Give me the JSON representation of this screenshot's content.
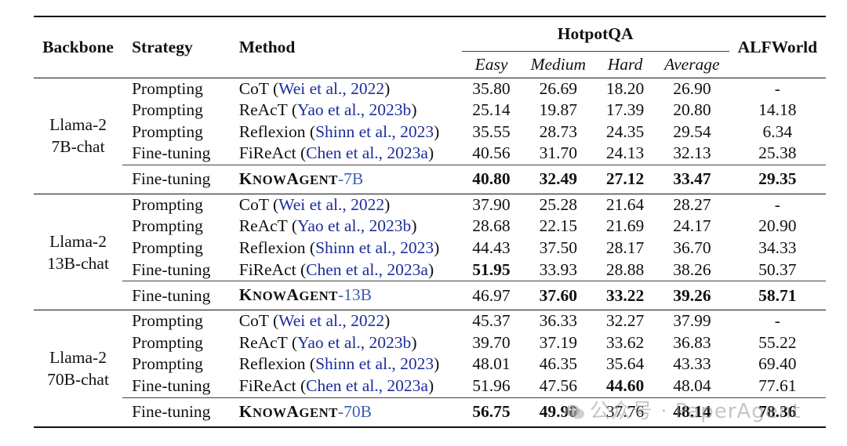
{
  "header": {
    "backbone": "Backbone",
    "strategy": "Strategy",
    "method": "Method",
    "hotpotqa": "HotpotQA",
    "alfworld": "ALFWorld",
    "sub": [
      "Easy",
      "Medium",
      "Hard",
      "Average"
    ]
  },
  "groups": [
    {
      "backbone_line1": "Llama-2",
      "backbone_line2": "7B-chat",
      "rows": [
        {
          "strategy": "Prompting",
          "method": "CoT",
          "cite": "Wei et al., 2022",
          "vals": [
            "35.80",
            "26.69",
            "18.20",
            "26.90"
          ],
          "alf": "-"
        },
        {
          "strategy": "Prompting",
          "method": "ReAcT",
          "cite": "Yao et al., 2023b",
          "vals": [
            "25.14",
            "19.87",
            "17.39",
            "20.80"
          ],
          "alf": "14.18"
        },
        {
          "strategy": "Prompting",
          "method": "Reflexion",
          "cite": "Shinn et al., 2023",
          "vals": [
            "35.55",
            "28.73",
            "24.35",
            "29.54"
          ],
          "alf": "6.34"
        },
        {
          "strategy": "Fine-tuning",
          "method": "FiReAct",
          "cite": "Chen et al., 2023a",
          "vals": [
            "40.56",
            "31.70",
            "24.13",
            "32.13"
          ],
          "alf": "25.38"
        }
      ],
      "know": {
        "strategy": "Fine-tuning",
        "name": "KNOWAGENT",
        "size": "-7B",
        "vals": [
          "40.80",
          "32.49",
          "27.12",
          "33.47"
        ],
        "alf": "29.35"
      }
    },
    {
      "backbone_line1": "Llama-2",
      "backbone_line2": "13B-chat",
      "rows": [
        {
          "strategy": "Prompting",
          "method": "CoT",
          "cite": "Wei et al., 2022",
          "vals": [
            "37.90",
            "25.28",
            "21.64",
            "28.27"
          ],
          "alf": "-"
        },
        {
          "strategy": "Prompting",
          "method": "ReAcT",
          "cite": "Yao et al., 2023b",
          "vals": [
            "28.68",
            "22.15",
            "21.69",
            "24.17"
          ],
          "alf": "20.90"
        },
        {
          "strategy": "Prompting",
          "method": "Reflexion",
          "cite": "Shinn et al., 2023",
          "vals": [
            "44.43",
            "37.50",
            "28.17",
            "36.70"
          ],
          "alf": "34.33"
        },
        {
          "strategy": "Fine-tuning",
          "method": "FiReAct",
          "cite": "Chen et al., 2023a",
          "vals": [
            "51.95",
            "33.93",
            "28.88",
            "38.26"
          ],
          "alf": "50.37"
        }
      ],
      "know": {
        "strategy": "Fine-tuning",
        "name": "KNOWAGENT",
        "size": "-13B",
        "vals": [
          "46.97",
          "37.60",
          "33.22",
          "39.26"
        ],
        "alf": "58.71"
      }
    },
    {
      "backbone_line1": "Llama-2",
      "backbone_line2": "70B-chat",
      "rows": [
        {
          "strategy": "Prompting",
          "method": "CoT",
          "cite": "Wei et al., 2022",
          "vals": [
            "45.37",
            "36.33",
            "32.27",
            "37.99"
          ],
          "alf": "-"
        },
        {
          "strategy": "Prompting",
          "method": "ReAcT",
          "cite": "Yao et al., 2023b",
          "vals": [
            "39.70",
            "37.19",
            "33.62",
            "36.83"
          ],
          "alf": "55.22"
        },
        {
          "strategy": "Prompting",
          "method": "Reflexion",
          "cite": "Shinn et al., 2023",
          "vals": [
            "48.01",
            "46.35",
            "35.64",
            "43.33"
          ],
          "alf": "69.40"
        },
        {
          "strategy": "Fine-tuning",
          "method": "FiReAct",
          "cite": "Chen et al., 2023a",
          "vals": [
            "51.96",
            "47.56",
            "44.60",
            "48.04"
          ],
          "alf": "77.61"
        }
      ],
      "know": {
        "strategy": "Fine-tuning",
        "name": "KNOWAGENT",
        "size": "-70B",
        "vals": [
          "56.75",
          "49.90",
          "37.76",
          "48.14"
        ],
        "alf": "78.36"
      }
    }
  ],
  "watermark": "公众号 · PaperAgent"
}
